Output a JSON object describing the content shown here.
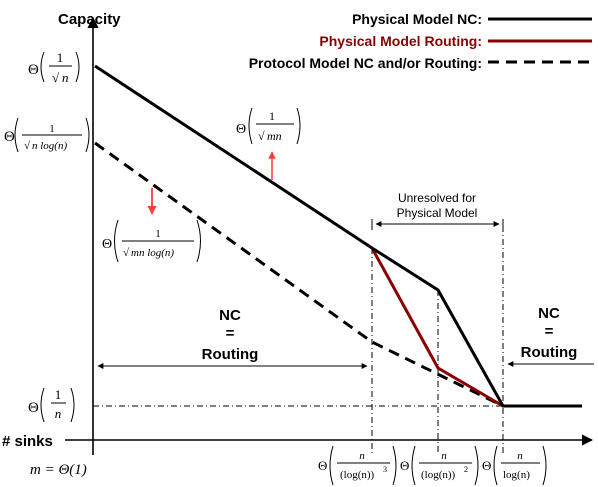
{
  "axes": {
    "y_label": "Capacity",
    "x_label": "# sinks"
  },
  "legend": [
    {
      "label": "Physical Model NC:",
      "color": "#000000",
      "dash": "solid"
    },
    {
      "label": "Physical Model Routing:",
      "color": "#8b0000",
      "dash": "solid"
    },
    {
      "label": "Protocol Model NC and/or Routing:",
      "color": "#000000",
      "dash": "dashed"
    }
  ],
  "theta": "Θ",
  "y_ticks": {
    "top": {
      "num": "1",
      "den": "n"
    },
    "mid": {
      "num": "1",
      "den": "n log(n)"
    },
    "bottom": {
      "num": "1",
      "den": "n"
    }
  },
  "annotations": {
    "upper_line": {
      "num": "1",
      "den": "mn"
    },
    "lower_line": {
      "num": "1",
      "den": "mn log(n)"
    },
    "unresolved_line1": "Unresolved for",
    "unresolved_line2": "Physical Model",
    "region_left": {
      "line1": "NC",
      "line2": "=",
      "line3": "Routing"
    },
    "region_right": {
      "line1": "NC",
      "line2": "=",
      "line3": "Routing"
    }
  },
  "x_ticks": {
    "origin": "m = Θ(1)",
    "t1": {
      "num": "n",
      "den": "(log(n))",
      "exp": "3"
    },
    "t2": {
      "num": "n",
      "den": "(log(n))",
      "exp": "2"
    },
    "t3": {
      "num": "n",
      "den": "log(n)"
    }
  },
  "colors": {
    "physical_nc": "#000000",
    "physical_routing": "#8b0000",
    "protocol": "#000000",
    "arrow": "#ff3b3b"
  }
}
